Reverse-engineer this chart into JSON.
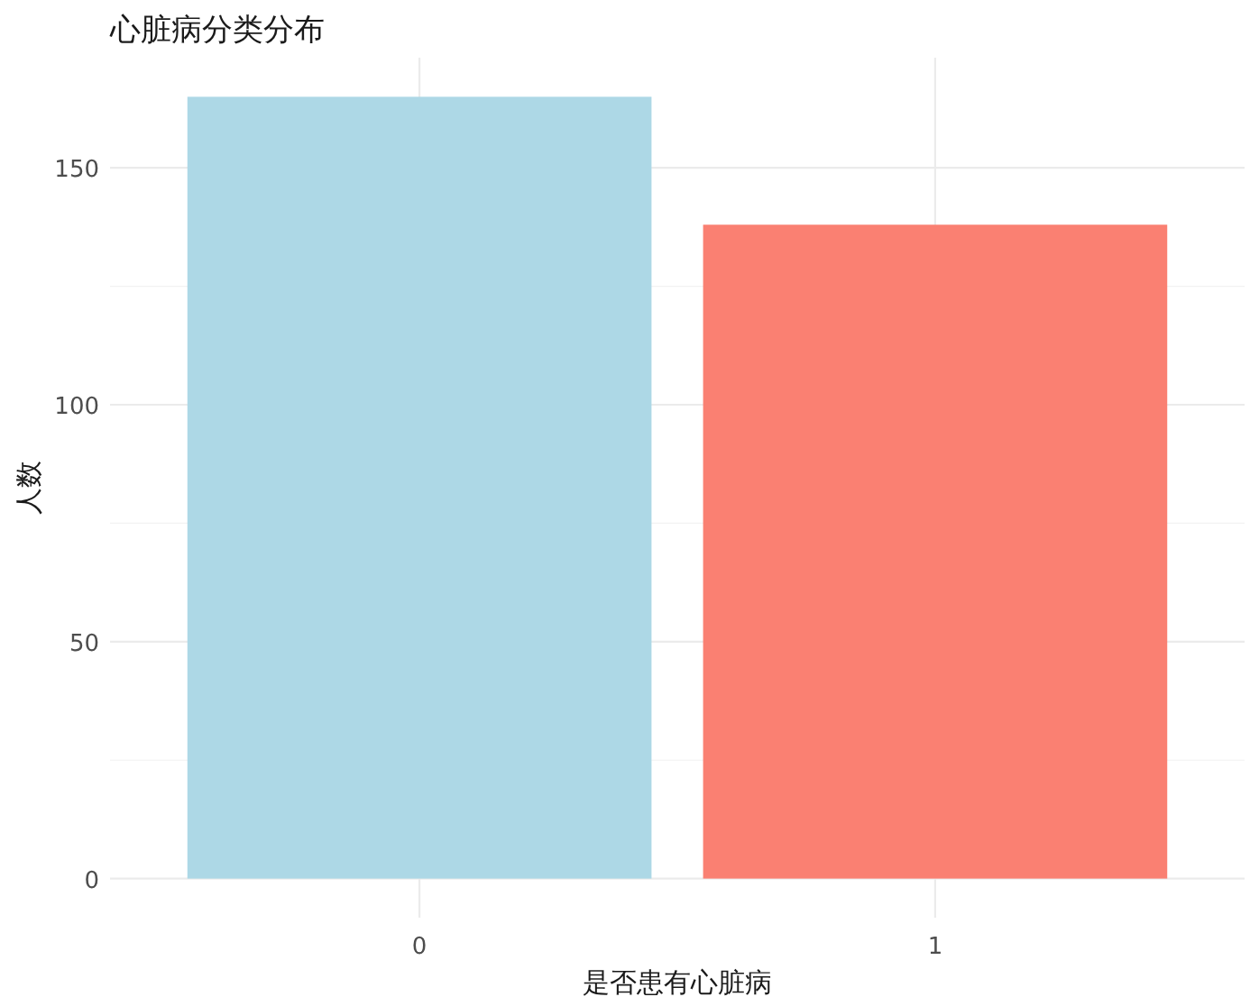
{
  "chart_data": {
    "type": "bar",
    "title": "心脏病分类分布",
    "xlabel": "是否患有心脏病",
    "ylabel": "人数",
    "categories": [
      "0",
      "1"
    ],
    "values": [
      165,
      138
    ],
    "colors": [
      "#add8e6",
      "#fa8072"
    ],
    "ylim": [
      -8.25,
      173.25
    ],
    "yticks": [
      0,
      50,
      100,
      150
    ],
    "grid": true
  }
}
